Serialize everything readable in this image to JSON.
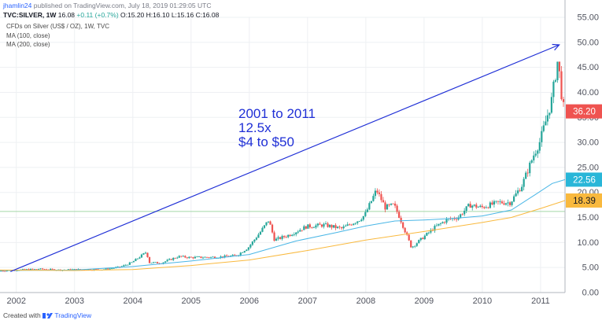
{
  "header": {
    "user": "jhamlin24",
    "published": "published on TradingView.com, July 18, 2019 01:29:05 UTC"
  },
  "ohlc": {
    "symbol": "TVC:SILVER, 1W",
    "last": "16.08",
    "change": "+0.11 (+0.7%)",
    "o": "O:15.20",
    "h": "H:16.10",
    "l": "L:15.16",
    "c": "C:16.08"
  },
  "indicators": {
    "main": "CFDs on Silver (US$ / OZ), 1W, TVC",
    "ma100": "MA (100, close)",
    "ma200": "MA (200, close)"
  },
  "footer": {
    "created_with": "Created with",
    "brand": "TradingView"
  },
  "colors": {
    "up": "#26a69a",
    "down": "#ef5350",
    "ma100": "#49b6e6",
    "ma200": "#f9b93e",
    "annotation": "#1f2fd6",
    "last_price_bg": "#ef5350",
    "ma100_bg": "#29b6d8",
    "ma200_bg": "#f9b93e",
    "hline": "#a5d6a7"
  },
  "chart_data": {
    "type": "candlestick",
    "x_start": 2001.72,
    "x_end": 2011.42,
    "y_range": [
      0,
      55
    ],
    "x_ticks": [
      2002,
      2003,
      2004,
      2005,
      2006,
      2007,
      2008,
      2009,
      2010,
      2011
    ],
    "x_tick_labels": [
      "2002",
      "2003",
      "2004",
      "2005",
      "2006",
      "2007",
      "2008",
      "2009",
      "2010",
      "2011"
    ],
    "y_ticks": [
      0,
      5,
      10,
      15,
      20,
      25,
      30,
      35,
      40,
      45,
      50,
      55
    ],
    "y_tick_labels": [
      "0.00",
      "5.00",
      "10.00",
      "15.00",
      "20.00",
      "25.00",
      "30.00",
      "35.00",
      "40.00",
      "45.00",
      "50.00",
      "55.00"
    ],
    "price_path": [
      [
        2001.72,
        4.3
      ],
      [
        2002.0,
        4.5
      ],
      [
        2002.4,
        4.7
      ],
      [
        2002.8,
        4.5
      ],
      [
        2003.0,
        4.6
      ],
      [
        2003.5,
        4.6
      ],
      [
        2003.8,
        5.1
      ],
      [
        2004.0,
        6.0
      ],
      [
        2004.25,
        8.1
      ],
      [
        2004.3,
        6.0
      ],
      [
        2004.5,
        5.9
      ],
      [
        2004.8,
        7.2
      ],
      [
        2005.0,
        7.0
      ],
      [
        2005.5,
        7.1
      ],
      [
        2005.8,
        7.4
      ],
      [
        2006.0,
        9.0
      ],
      [
        2006.2,
        12.0
      ],
      [
        2006.35,
        14.5
      ],
      [
        2006.45,
        10.5
      ],
      [
        2006.7,
        11.5
      ],
      [
        2007.0,
        13.2
      ],
      [
        2007.3,
        13.5
      ],
      [
        2007.6,
        12.8
      ],
      [
        2007.9,
        14.5
      ],
      [
        2008.0,
        15.5
      ],
      [
        2008.2,
        20.5
      ],
      [
        2008.35,
        17.0
      ],
      [
        2008.5,
        17.5
      ],
      [
        2008.6,
        15.0
      ],
      [
        2008.7,
        12.0
      ],
      [
        2008.8,
        9.0
      ],
      [
        2009.0,
        11.0
      ],
      [
        2009.2,
        13.0
      ],
      [
        2009.4,
        14.5
      ],
      [
        2009.6,
        15.0
      ],
      [
        2009.8,
        17.5
      ],
      [
        2010.0,
        17.0
      ],
      [
        2010.3,
        18.0
      ],
      [
        2010.5,
        18.0
      ],
      [
        2010.7,
        21.5
      ],
      [
        2010.9,
        27.5
      ],
      [
        2011.0,
        30.0
      ],
      [
        2011.2,
        38.0
      ],
      [
        2011.32,
        47.0
      ],
      [
        2011.36,
        41.0
      ],
      [
        2011.42,
        36.2
      ]
    ],
    "series": [
      {
        "name": "MA (100, close)",
        "points": [
          [
            2001.72,
            4.4
          ],
          [
            2003.0,
            4.5
          ],
          [
            2004.0,
            5.2
          ],
          [
            2005.0,
            6.3
          ],
          [
            2006.0,
            7.6
          ],
          [
            2006.8,
            10.3
          ],
          [
            2007.5,
            12.0
          ],
          [
            2008.0,
            13.3
          ],
          [
            2008.5,
            14.3
          ],
          [
            2009.0,
            14.5
          ],
          [
            2009.5,
            14.8
          ],
          [
            2010.0,
            15.3
          ],
          [
            2010.5,
            16.5
          ],
          [
            2010.9,
            19.5
          ],
          [
            2011.2,
            21.8
          ],
          [
            2011.42,
            22.56
          ]
        ]
      },
      {
        "name": "MA (200, close)",
        "points": [
          [
            2001.72,
            4.5
          ],
          [
            2003.0,
            4.4
          ],
          [
            2004.0,
            4.6
          ],
          [
            2005.0,
            5.4
          ],
          [
            2006.0,
            6.5
          ],
          [
            2007.0,
            8.4
          ],
          [
            2008.0,
            10.5
          ],
          [
            2009.0,
            12.2
          ],
          [
            2010.0,
            14.0
          ],
          [
            2010.5,
            15.0
          ],
          [
            2011.0,
            16.8
          ],
          [
            2011.42,
            18.39
          ]
        ]
      }
    ],
    "price_labels": [
      {
        "name": "last-price",
        "value": 36.2,
        "text": "36.20",
        "color": "#ef5350"
      },
      {
        "name": "ma100",
        "value": 22.56,
        "text": "22.56",
        "color": "#29b6d8"
      },
      {
        "name": "ma200",
        "value": 18.39,
        "text": "18.39",
        "color": "#f9b93e"
      }
    ],
    "horizontal_line": 16.2,
    "annotation": {
      "lines": [
        "2001 to 2011",
        "12.5x",
        "$4 to $50"
      ],
      "arrow_from": [
        2001.9,
        4.2
      ],
      "arrow_to": [
        2011.32,
        49.5
      ]
    }
  }
}
